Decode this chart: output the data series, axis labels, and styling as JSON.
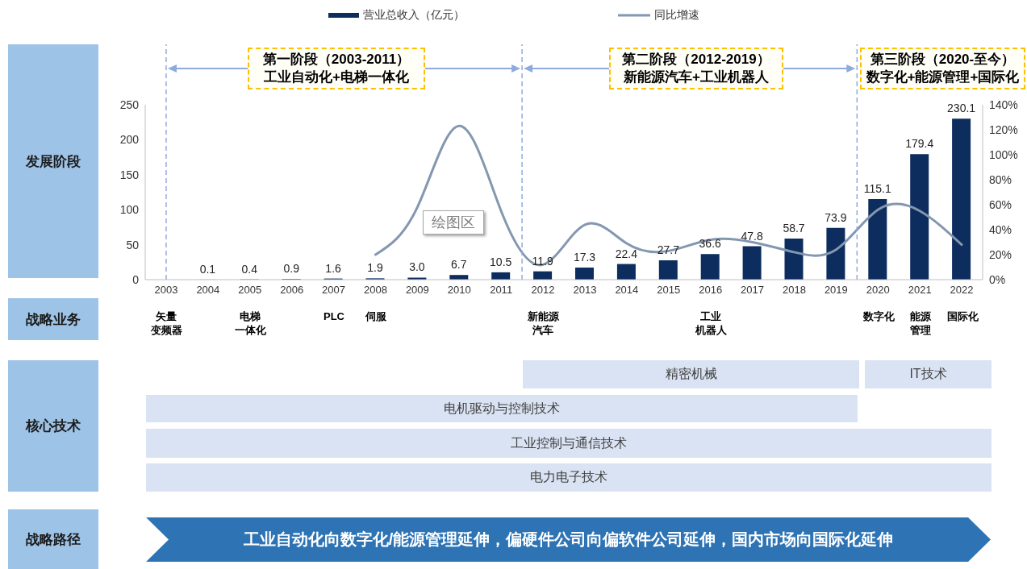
{
  "chart_data": {
    "type": "bar",
    "legend": "top",
    "x": [
      2004,
      2005,
      2006,
      2007,
      2008,
      2009,
      2010,
      2011,
      2012,
      2013,
      2014,
      2015,
      2016,
      2017,
      2018,
      2019,
      2020,
      2021,
      2022
    ],
    "xlim": [
      2002.5,
      2022.5
    ],
    "xticks": [
      2003,
      2004,
      2005,
      2006,
      2007,
      2008,
      2009,
      2010,
      2011,
      2012,
      2013,
      2014,
      2015,
      2016,
      2017,
      2018,
      2019,
      2020,
      2021,
      2022
    ],
    "ylim": [
      0,
      250
    ],
    "yticks": [
      0,
      50,
      100,
      150,
      200,
      250
    ],
    "y2lim": [
      0,
      140
    ],
    "y2ticks": [
      {
        "value": 0,
        "label": "0%"
      },
      {
        "value": 20,
        "label": "20%"
      },
      {
        "value": 40,
        "label": "40%"
      },
      {
        "value": 60,
        "label": "60%"
      },
      {
        "value": 80,
        "label": "80%"
      },
      {
        "value": 100,
        "label": "100%"
      },
      {
        "value": 120,
        "label": "120%"
      },
      {
        "value": 140,
        "label": "140%"
      }
    ],
    "series": [
      {
        "name": "营业总收入（亿元）",
        "color": "#0d2d5e",
        "values": [
          0.1,
          0.4,
          0.9,
          1.6,
          1.9,
          3.0,
          6.7,
          10.5,
          11.9,
          17.3,
          22.4,
          27.7,
          36.6,
          47.8,
          58.7,
          73.9,
          115.1,
          179.4,
          230.1
        ],
        "value_labels": [
          "0.1",
          "0.4",
          "0.9",
          "1.6",
          "1.9",
          "3.0",
          "6.7",
          "10.5",
          "11.9",
          "17.3",
          "22.4",
          "27.7",
          "36.6",
          "47.8",
          "58.7",
          "73.9",
          "115.1",
          "179.4",
          "230.1"
        ]
      },
      {
        "name": "同比增速",
        "type": "line",
        "axis": "y2",
        "color": "#8497b0",
        "line_style": "solid",
        "values": [
          null,
          null,
          null,
          null,
          20,
          58,
          123,
          55,
          12,
          44,
          29,
          23,
          32,
          30,
          22,
          24,
          56,
          55,
          28
        ]
      }
    ],
    "ref_lines": [
      {
        "axis": "x",
        "value": 2003,
        "color": "#8faadc",
        "line_style": "dashed"
      },
      {
        "axis": "x",
        "value": 2011.5,
        "color": "#8faadc",
        "line_style": "dashed"
      },
      {
        "axis": "x",
        "value": 2019.5,
        "color": "#8faadc",
        "line_style": "dashed"
      }
    ],
    "annotations": [
      "发展阶段",
      "第一阶段（2003-2011）工业自动化+电梯一体化",
      "第二阶段（2012-2019）新能源汽车+工业机器人",
      "第三阶段（2020-至今）数字化+能源管理+国际化",
      "绘图区",
      "战略业务",
      "矢量变频器",
      "电梯一体化",
      "PLC",
      "伺服",
      "新能源汽车",
      "工业机器人",
      "数字化",
      "能源管理",
      "国际化",
      "核心技术",
      "精密机械",
      "IT技术",
      "电机驱动与控制技术",
      "工业控制与通信技术",
      "电力电子技术",
      "战略路径",
      "工业自动化向数字化/能源管理延伸，偏硬件公司向偏软件公司延伸，国内市场向国际化延伸"
    ]
  }
}
